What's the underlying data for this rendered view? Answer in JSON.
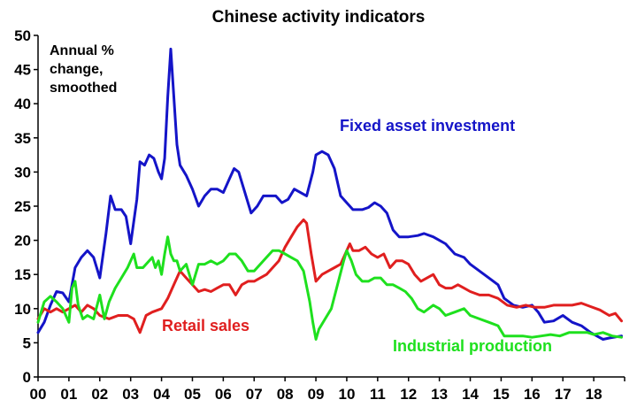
{
  "chart_data": {
    "type": "line",
    "title": "Chinese activity indicators",
    "annotation": [
      "Annual %",
      "change,",
      "smoothed"
    ],
    "xlabel": "",
    "ylabel": "",
    "ylim": [
      0,
      50
    ],
    "yticks": [
      "0",
      "5",
      "10",
      "15",
      "20",
      "25",
      "30",
      "35",
      "40",
      "45",
      "50"
    ],
    "xlim": [
      2000,
      2019
    ],
    "xticks": [
      "00",
      "01",
      "02",
      "03",
      "04",
      "05",
      "06",
      "07",
      "08",
      "09",
      "10",
      "11",
      "12",
      "13",
      "14",
      "15",
      "16",
      "17",
      "18"
    ],
    "grid": false,
    "legend": "inline labels",
    "series": [
      {
        "name": "Fixed asset investment",
        "color": "#1414c8",
        "points": [
          [
            2000.0,
            6.5
          ],
          [
            2000.2,
            8
          ],
          [
            2000.4,
            10.5
          ],
          [
            2000.6,
            12.5
          ],
          [
            2000.8,
            12.3
          ],
          [
            2001.0,
            11
          ],
          [
            2001.2,
            16
          ],
          [
            2001.4,
            17.5
          ],
          [
            2001.6,
            18.5
          ],
          [
            2001.8,
            17.5
          ],
          [
            2002.0,
            14.5
          ],
          [
            2002.2,
            21
          ],
          [
            2002.35,
            26.5
          ],
          [
            2002.5,
            24.5
          ],
          [
            2002.7,
            24.5
          ],
          [
            2002.85,
            23.5
          ],
          [
            2003.0,
            19.5
          ],
          [
            2003.2,
            26
          ],
          [
            2003.3,
            31.5
          ],
          [
            2003.45,
            31
          ],
          [
            2003.6,
            32.5
          ],
          [
            2003.75,
            32
          ],
          [
            2003.9,
            30
          ],
          [
            2004.0,
            29
          ],
          [
            2004.1,
            32
          ],
          [
            2004.2,
            41
          ],
          [
            2004.3,
            48
          ],
          [
            2004.4,
            41
          ],
          [
            2004.5,
            34
          ],
          [
            2004.6,
            31
          ],
          [
            2004.8,
            29.5
          ],
          [
            2005.0,
            27.5
          ],
          [
            2005.2,
            25
          ],
          [
            2005.4,
            26.5
          ],
          [
            2005.6,
            27.5
          ],
          [
            2005.8,
            27.5
          ],
          [
            2006.0,
            27
          ],
          [
            2006.2,
            29
          ],
          [
            2006.35,
            30.5
          ],
          [
            2006.5,
            30
          ],
          [
            2006.7,
            27
          ],
          [
            2006.9,
            24
          ],
          [
            2007.1,
            25
          ],
          [
            2007.3,
            26.5
          ],
          [
            2007.5,
            26.5
          ],
          [
            2007.7,
            26.5
          ],
          [
            2007.9,
            25.5
          ],
          [
            2008.1,
            26
          ],
          [
            2008.3,
            27.5
          ],
          [
            2008.5,
            27
          ],
          [
            2008.7,
            26.5
          ],
          [
            2008.9,
            30
          ],
          [
            2009.0,
            32.5
          ],
          [
            2009.2,
            33
          ],
          [
            2009.4,
            32.5
          ],
          [
            2009.6,
            30.5
          ],
          [
            2009.8,
            26.5
          ],
          [
            2010.0,
            25.5
          ],
          [
            2010.2,
            24.5
          ],
          [
            2010.5,
            24.5
          ],
          [
            2010.7,
            24.8
          ],
          [
            2010.9,
            25.5
          ],
          [
            2011.1,
            25
          ],
          [
            2011.3,
            24
          ],
          [
            2011.5,
            21.5
          ],
          [
            2011.7,
            20.5
          ],
          [
            2012.0,
            20.5
          ],
          [
            2012.3,
            20.7
          ],
          [
            2012.5,
            21
          ],
          [
            2012.8,
            20.5
          ],
          [
            2013.0,
            20
          ],
          [
            2013.2,
            19.5
          ],
          [
            2013.5,
            18
          ],
          [
            2013.8,
            17.5
          ],
          [
            2014.0,
            16.5
          ],
          [
            2014.3,
            15.5
          ],
          [
            2014.6,
            14.5
          ],
          [
            2014.9,
            13.5
          ],
          [
            2015.1,
            11.5
          ],
          [
            2015.4,
            10.5
          ],
          [
            2015.7,
            10.2
          ],
          [
            2016.0,
            10.5
          ],
          [
            2016.2,
            9.5
          ],
          [
            2016.4,
            8
          ],
          [
            2016.7,
            8.2
          ],
          [
            2017.0,
            9
          ],
          [
            2017.3,
            8
          ],
          [
            2017.6,
            7.5
          ],
          [
            2017.9,
            6.5
          ],
          [
            2018.1,
            6
          ],
          [
            2018.3,
            5.5
          ],
          [
            2018.5,
            5.7
          ],
          [
            2018.9,
            6
          ]
        ]
      },
      {
        "name": "Retail sales",
        "color": "#e01f1f",
        "points": [
          [
            2000.0,
            8.5
          ],
          [
            2000.2,
            10
          ],
          [
            2000.4,
            9.5
          ],
          [
            2000.6,
            10
          ],
          [
            2000.8,
            9.5
          ],
          [
            2001.0,
            10
          ],
          [
            2001.2,
            10.5
          ],
          [
            2001.4,
            9.5
          ],
          [
            2001.6,
            10.5
          ],
          [
            2001.8,
            10
          ],
          [
            2002.0,
            9
          ],
          [
            2002.3,
            8.5
          ],
          [
            2002.6,
            9
          ],
          [
            2002.9,
            9
          ],
          [
            2003.1,
            8.5
          ],
          [
            2003.3,
            6.5
          ],
          [
            2003.5,
            9
          ],
          [
            2003.7,
            9.5
          ],
          [
            2004.0,
            10
          ],
          [
            2004.2,
            11.5
          ],
          [
            2004.4,
            13.5
          ],
          [
            2004.6,
            15.5
          ],
          [
            2004.8,
            14.5
          ],
          [
            2005.0,
            13.5
          ],
          [
            2005.2,
            12.5
          ],
          [
            2005.4,
            12.8
          ],
          [
            2005.6,
            12.5
          ],
          [
            2005.8,
            13
          ],
          [
            2006.0,
            13.5
          ],
          [
            2006.2,
            13.5
          ],
          [
            2006.4,
            12
          ],
          [
            2006.6,
            13.5
          ],
          [
            2006.8,
            14
          ],
          [
            2007.0,
            14
          ],
          [
            2007.2,
            14.5
          ],
          [
            2007.4,
            15
          ],
          [
            2007.6,
            16
          ],
          [
            2007.8,
            17
          ],
          [
            2008.0,
            19
          ],
          [
            2008.2,
            20.5
          ],
          [
            2008.4,
            22
          ],
          [
            2008.6,
            23
          ],
          [
            2008.7,
            22.5
          ],
          [
            2008.85,
            18
          ],
          [
            2009.0,
            14
          ],
          [
            2009.2,
            15
          ],
          [
            2009.4,
            15.5
          ],
          [
            2009.6,
            16
          ],
          [
            2009.8,
            16.5
          ],
          [
            2010.0,
            18.5
          ],
          [
            2010.1,
            19.5
          ],
          [
            2010.2,
            18.5
          ],
          [
            2010.4,
            18.5
          ],
          [
            2010.6,
            19
          ],
          [
            2010.8,
            18
          ],
          [
            2011.0,
            17.5
          ],
          [
            2011.2,
            18
          ],
          [
            2011.4,
            16
          ],
          [
            2011.6,
            17
          ],
          [
            2011.8,
            17
          ],
          [
            2012.0,
            16.5
          ],
          [
            2012.2,
            15
          ],
          [
            2012.4,
            14
          ],
          [
            2012.6,
            14.5
          ],
          [
            2012.8,
            15
          ],
          [
            2013.0,
            13.5
          ],
          [
            2013.2,
            13
          ],
          [
            2013.4,
            13
          ],
          [
            2013.6,
            13.5
          ],
          [
            2013.8,
            13
          ],
          [
            2014.0,
            12.5
          ],
          [
            2014.3,
            12
          ],
          [
            2014.6,
            12
          ],
          [
            2014.9,
            11.5
          ],
          [
            2015.2,
            10.5
          ],
          [
            2015.5,
            10.2
          ],
          [
            2015.8,
            10.5
          ],
          [
            2016.1,
            10.2
          ],
          [
            2016.4,
            10.2
          ],
          [
            2016.7,
            10.5
          ],
          [
            2017.0,
            10.5
          ],
          [
            2017.3,
            10.5
          ],
          [
            2017.6,
            10.8
          ],
          [
            2017.9,
            10.3
          ],
          [
            2018.2,
            9.8
          ],
          [
            2018.5,
            9
          ],
          [
            2018.7,
            9.3
          ],
          [
            2018.9,
            8.2
          ]
        ]
      },
      {
        "name": "Industrial production",
        "color": "#1ee01e",
        "points": [
          [
            2000.0,
            8
          ],
          [
            2000.2,
            11
          ],
          [
            2000.4,
            11.8
          ],
          [
            2000.6,
            11
          ],
          [
            2000.8,
            10
          ],
          [
            2001.0,
            8
          ],
          [
            2001.1,
            13
          ],
          [
            2001.2,
            14
          ],
          [
            2001.3,
            10.5
          ],
          [
            2001.45,
            8.5
          ],
          [
            2001.6,
            9
          ],
          [
            2001.8,
            8.5
          ],
          [
            2002.0,
            12
          ],
          [
            2002.15,
            8.5
          ],
          [
            2002.3,
            11
          ],
          [
            2002.5,
            13
          ],
          [
            2002.7,
            14.5
          ],
          [
            2002.9,
            16
          ],
          [
            2003.1,
            18
          ],
          [
            2003.2,
            16
          ],
          [
            2003.4,
            16
          ],
          [
            2003.5,
            16.5
          ],
          [
            2003.7,
            17.5
          ],
          [
            2003.8,
            16
          ],
          [
            2003.9,
            17
          ],
          [
            2004.0,
            15
          ],
          [
            2004.1,
            18
          ],
          [
            2004.2,
            20.5
          ],
          [
            2004.3,
            18
          ],
          [
            2004.4,
            17
          ],
          [
            2004.5,
            17
          ],
          [
            2004.6,
            15.5
          ],
          [
            2004.8,
            16.5
          ],
          [
            2005.0,
            13.5
          ],
          [
            2005.2,
            16.5
          ],
          [
            2005.4,
            16.5
          ],
          [
            2005.6,
            17
          ],
          [
            2005.8,
            16.5
          ],
          [
            2006.0,
            17
          ],
          [
            2006.2,
            18
          ],
          [
            2006.4,
            18
          ],
          [
            2006.6,
            17
          ],
          [
            2006.8,
            15.5
          ],
          [
            2007.0,
            15.5
          ],
          [
            2007.2,
            16.5
          ],
          [
            2007.4,
            17.5
          ],
          [
            2007.6,
            18.5
          ],
          [
            2007.8,
            18.5
          ],
          [
            2008.0,
            18
          ],
          [
            2008.2,
            17.5
          ],
          [
            2008.4,
            17
          ],
          [
            2008.6,
            15.5
          ],
          [
            2008.8,
            11
          ],
          [
            2008.9,
            8
          ],
          [
            2009.0,
            5.5
          ],
          [
            2009.1,
            7
          ],
          [
            2009.3,
            8.5
          ],
          [
            2009.5,
            10
          ],
          [
            2009.7,
            13.5
          ],
          [
            2009.9,
            17
          ],
          [
            2010.0,
            18.5
          ],
          [
            2010.15,
            17
          ],
          [
            2010.3,
            15
          ],
          [
            2010.5,
            14
          ],
          [
            2010.7,
            14
          ],
          [
            2010.9,
            14.5
          ],
          [
            2011.1,
            14.5
          ],
          [
            2011.3,
            13.5
          ],
          [
            2011.5,
            13.5
          ],
          [
            2011.7,
            13
          ],
          [
            2011.9,
            12.5
          ],
          [
            2012.1,
            11.5
          ],
          [
            2012.3,
            10
          ],
          [
            2012.5,
            9.5
          ],
          [
            2012.8,
            10.5
          ],
          [
            2013.0,
            10
          ],
          [
            2013.2,
            9
          ],
          [
            2013.5,
            9.5
          ],
          [
            2013.8,
            10
          ],
          [
            2014.0,
            9
          ],
          [
            2014.3,
            8.5
          ],
          [
            2014.6,
            8
          ],
          [
            2014.9,
            7.5
          ],
          [
            2015.1,
            6
          ],
          [
            2015.4,
            6
          ],
          [
            2015.7,
            6
          ],
          [
            2016.0,
            5.8
          ],
          [
            2016.3,
            6
          ],
          [
            2016.6,
            6.2
          ],
          [
            2016.9,
            6
          ],
          [
            2017.2,
            6.5
          ],
          [
            2017.5,
            6.5
          ],
          [
            2017.8,
            6.5
          ],
          [
            2018.0,
            6.2
          ],
          [
            2018.3,
            6.5
          ],
          [
            2018.6,
            6
          ],
          [
            2018.9,
            5.8
          ]
        ]
      }
    ]
  }
}
